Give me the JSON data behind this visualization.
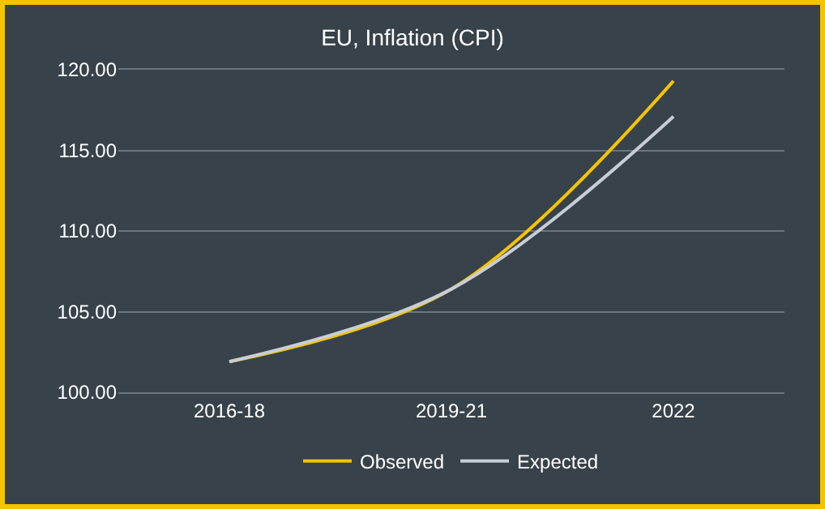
{
  "chart_data": {
    "type": "line",
    "title": "EU, Inflation (CPI)",
    "categories": [
      "2016-18",
      "2019-21",
      "2022"
    ],
    "series": [
      {
        "name": "Observed",
        "color": "#f5c400",
        "values": [
          101.9,
          106.4,
          119.3
        ]
      },
      {
        "name": "Expected",
        "color": "#c9ced6",
        "values": [
          101.9,
          106.4,
          117.1
        ]
      }
    ],
    "ylim": [
      100,
      120
    ],
    "yticks": [
      {
        "value": 100,
        "label": "100.00"
      },
      {
        "value": 105,
        "label": "105.00"
      },
      {
        "value": 110,
        "label": "110.00"
      },
      {
        "value": 115,
        "label": "115.00"
      },
      {
        "value": 120,
        "label": "120.00"
      }
    ],
    "grid": "y",
    "legend": "bottom",
    "marker": "none",
    "line_style": "solid"
  }
}
